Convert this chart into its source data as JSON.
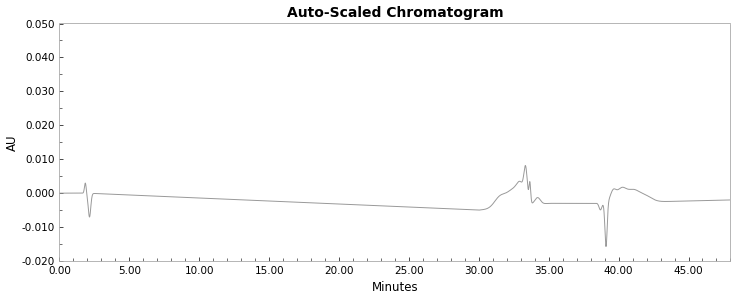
{
  "title": "Auto-Scaled Chromatogram",
  "xlabel": "Minutes",
  "ylabel": "AU",
  "xlim": [
    0.0,
    48.0
  ],
  "ylim": [
    -0.02,
    0.05
  ],
  "yticks": [
    -0.02,
    -0.01,
    0.0,
    0.01,
    0.02,
    0.03,
    0.04,
    0.05
  ],
  "xticks": [
    0.0,
    5.0,
    10.0,
    15.0,
    20.0,
    25.0,
    30.0,
    35.0,
    40.0,
    45.0
  ],
  "line_color": "#999999",
  "bg_color": "#ffffff",
  "title_fontsize": 10,
  "label_fontsize": 8.5,
  "tick_fontsize": 7.5
}
